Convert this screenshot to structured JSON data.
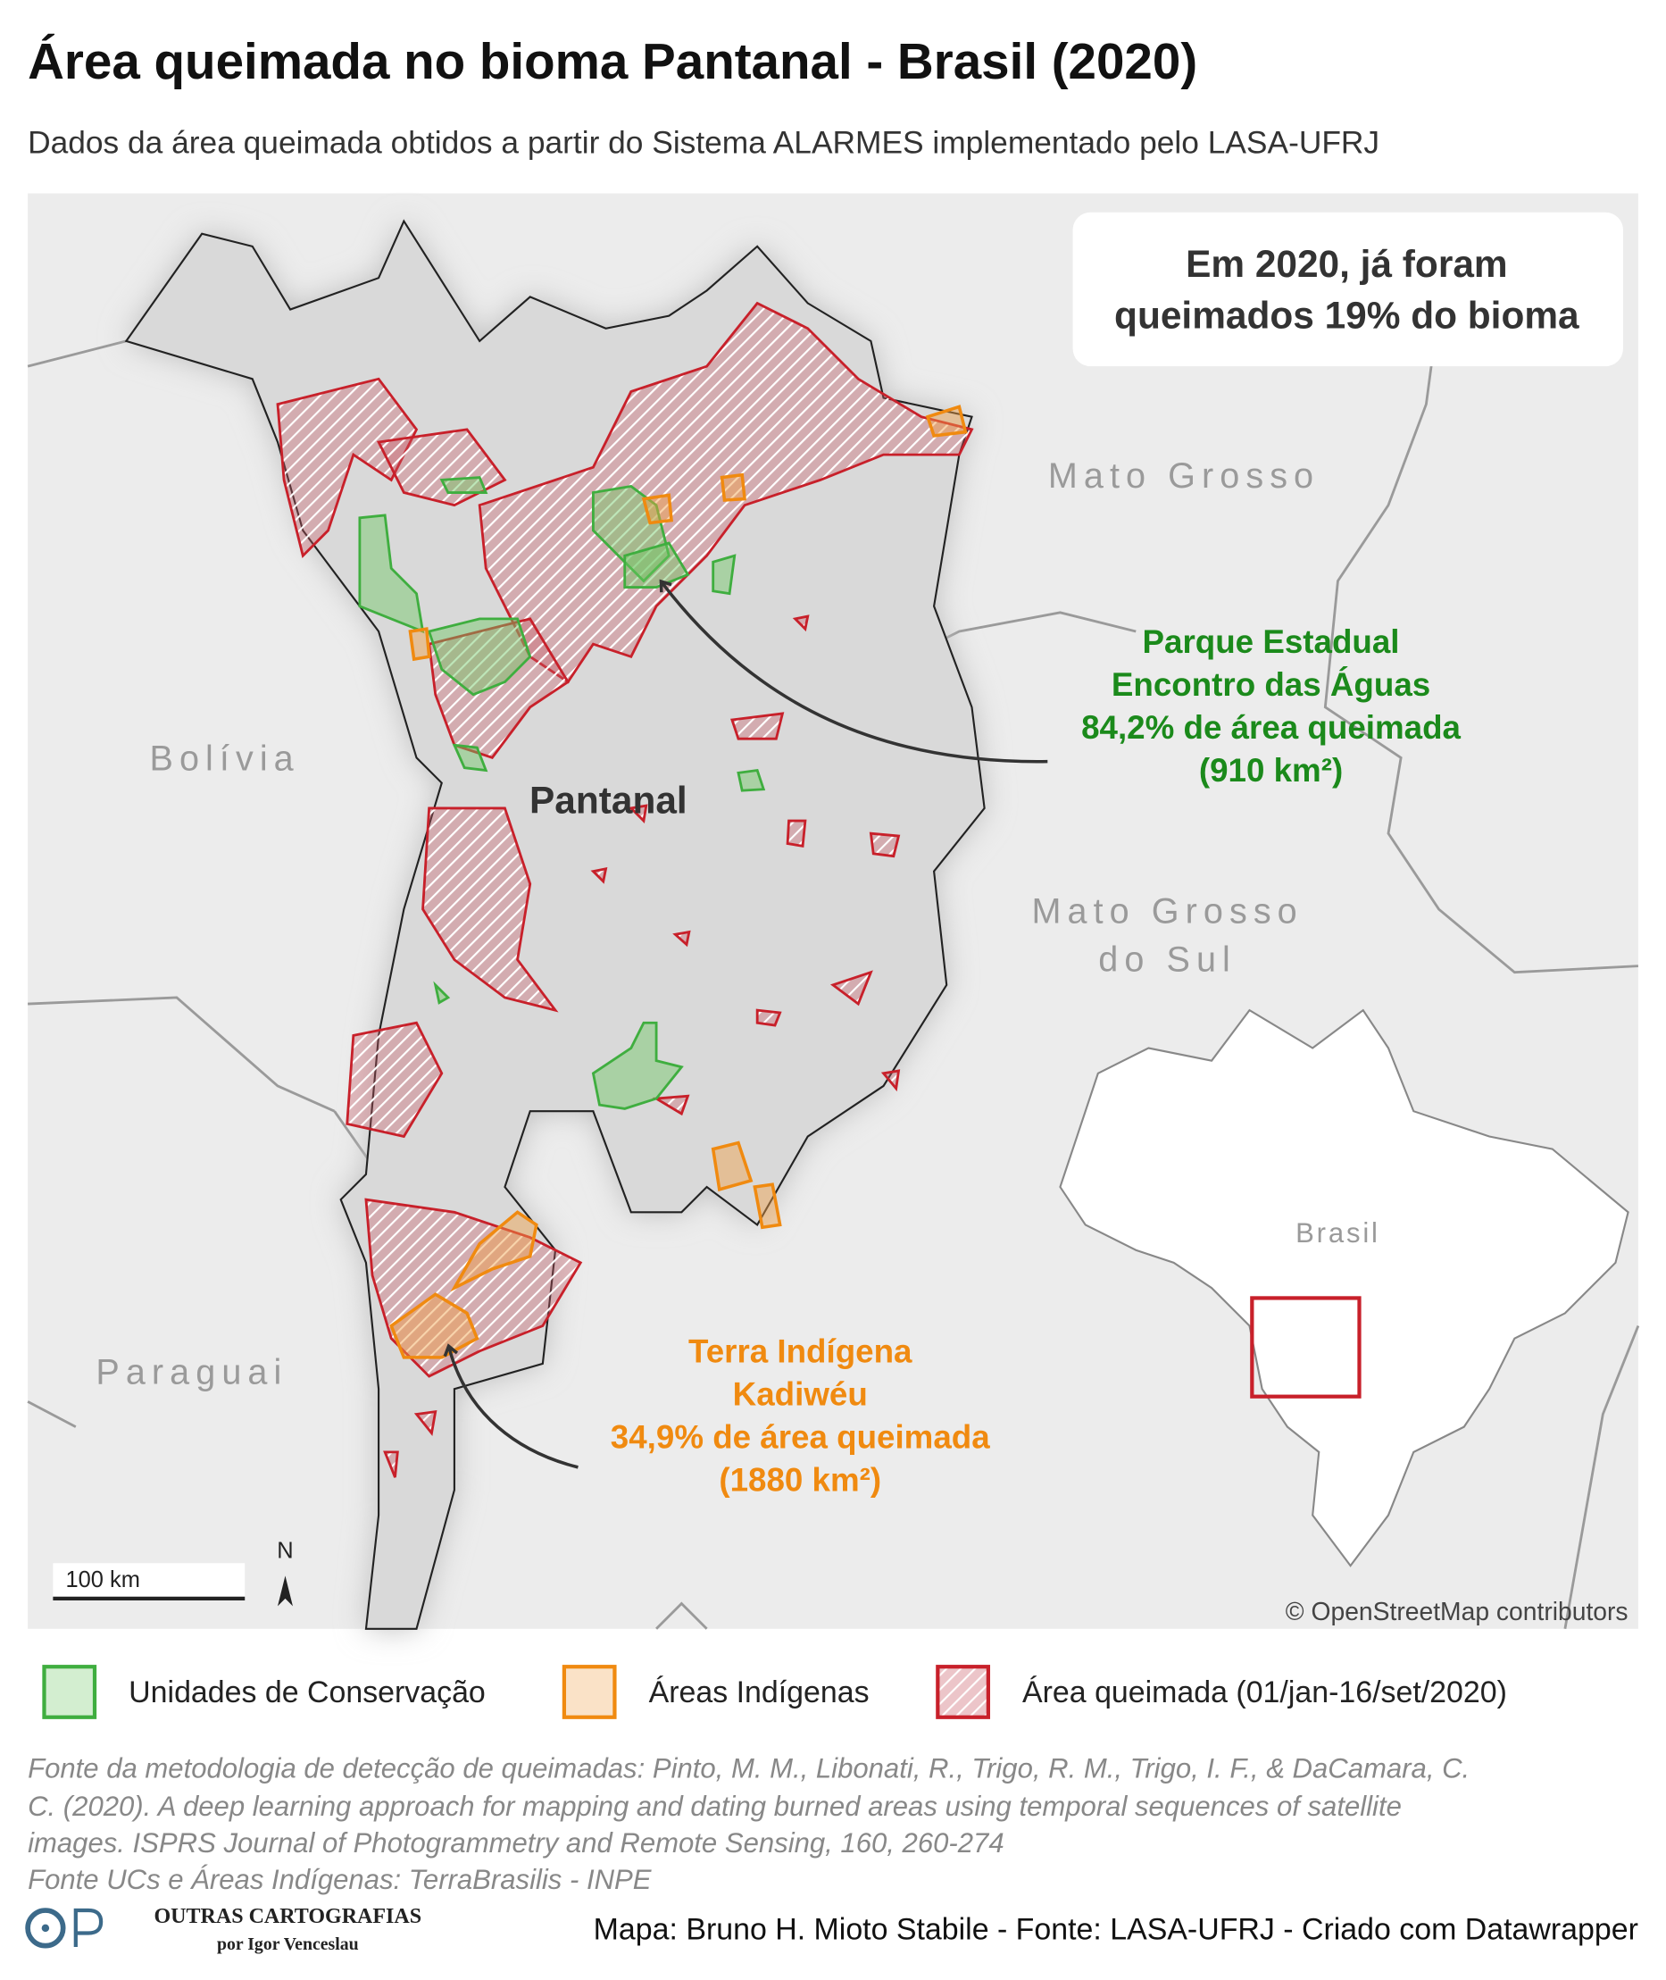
{
  "header": {
    "title": "Área queimada no bioma Pantanal - Brasil (2020)",
    "subtitle": "Dados da área queimada obtidos a partir do Sistema ALARMES implementado pelo LASA-UFRJ"
  },
  "map": {
    "callout": [
      "Em 2020, já foram",
      "queimados 19% do bioma"
    ],
    "labels": {
      "mato_grosso": "Mato Grosso",
      "mato_grosso_do_sul": [
        "Mato Grosso",
        "do Sul"
      ],
      "bolivia": "Bolívia",
      "paraguai": "Paraguai",
      "pantanal": "Pantanal",
      "brasil": "Brasil"
    },
    "annotations": [
      [
        "Parque Estadual",
        "Encontro das Águas",
        "84,2% de área queimada",
        "(910 km²)"
      ],
      [
        "Terra Indígena",
        "Kadiwéu",
        "34,9% de área queimada",
        "(1880 km²)"
      ]
    ],
    "scale": "100 km",
    "north": "N",
    "attribution": "© OpenStreetMap contributors"
  },
  "legend": [
    "Unidades de Conservação",
    "Áreas Indígenas",
    "Área queimada (01/jan-16/set/2020)"
  ],
  "source": [
    "Fonte da metodologia de detecção de queimadas: Pinto, M. M., Libonati, R., Trigo, R. M., Trigo, I. F., & DaCamara, C.",
    "C. (2020). A deep learning approach for mapping and dating burned areas using temporal sequences of satellite",
    "images. ISPRS Journal of Photogrammetry and Remote Sensing, 160, 260-274",
    "Fonte UCs e Áreas Indígenas: TerraBrasilis - INPE"
  ],
  "footer": {
    "logo": "OUTRAS CARTOGRAFIAS",
    "logo_sub": "por Igor Venceslau",
    "credit": "Mapa: Bruno H. Mioto Stabile - Fonte: LASA-UFRJ - Criado com Datawrapper"
  }
}
